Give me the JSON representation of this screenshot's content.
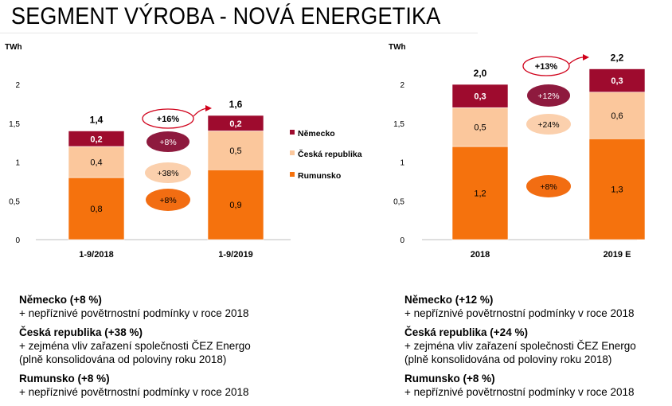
{
  "page": {
    "title": "SEGMENT VÝROBA - NOVÁ ENERGETIKA"
  },
  "colors": {
    "germany": "#9e0b2e",
    "czech": "#fbc79c",
    "romania": "#f5720d",
    "germany_badge": "#8e1a3e",
    "czech_badge": "#fbd0ad",
    "romania_badge": "#f26d12",
    "growth_oval": "#d0021b"
  },
  "chart_data": [
    {
      "type": "bar",
      "stacked": true,
      "unit": "TWh",
      "categories": [
        "1-9/2018",
        "1-9/2019"
      ],
      "series": [
        {
          "name": "Rumunsko",
          "values": [
            0.8,
            0.9
          ],
          "labels": [
            "0,8",
            "0,9"
          ]
        },
        {
          "name": "Česká republika",
          "values": [
            0.4,
            0.5
          ],
          "labels": [
            "0,4",
            "0,5"
          ]
        },
        {
          "name": "Německo",
          "values": [
            0.2,
            0.2
          ],
          "labels": [
            "0,2",
            "0,2"
          ]
        }
      ],
      "totals": [
        "1,4",
        "1,6"
      ],
      "ylim": [
        0,
        2
      ],
      "yticks": [
        "0",
        "0,5",
        "1",
        "1,5",
        "2"
      ],
      "legend": [
        "Německo",
        "Česká republika",
        "Rumunsko"
      ],
      "legend_position": "right",
      "growth_total": "+16%",
      "growth_badges": {
        "germany": "+8%",
        "czech": "+38%",
        "romania": "+8%"
      }
    },
    {
      "type": "bar",
      "stacked": true,
      "unit": "TWh",
      "categories": [
        "2018",
        "2019 E"
      ],
      "series": [
        {
          "name": "Rumunsko",
          "values": [
            1.2,
            1.3
          ],
          "labels": [
            "1,2",
            "1,3"
          ]
        },
        {
          "name": "Česká republika",
          "values": [
            0.5,
            0.6
          ],
          "labels": [
            "0,5",
            "0,6"
          ]
        },
        {
          "name": "Německo",
          "values": [
            0.3,
            0.3
          ],
          "labels": [
            "0,3",
            "0,3"
          ]
        }
      ],
      "totals": [
        "2,0",
        "2,2"
      ],
      "ylim": [
        0,
        2
      ],
      "yticks": [
        "0",
        "0,5",
        "1",
        "1,5",
        "2"
      ],
      "growth_total": "+13%",
      "growth_badges": {
        "germany": "+12%",
        "czech": "+24%",
        "romania": "+8%"
      }
    }
  ],
  "notes_left": [
    {
      "heading": "Německo (+8 %)",
      "lines": [
        "+ nepříznivé povětrnostní podmínky v roce 2018"
      ]
    },
    {
      "heading": "Česká republika (+38 %)",
      "lines": [
        "+ zejména vliv zařazení společnosti ČEZ Energo",
        "(plně konsolidována od poloviny roku 2018)"
      ]
    },
    {
      "heading": "Rumunsko (+8 %)",
      "lines": [
        "+ nepříznivé povětrnostní podmínky v roce 2018"
      ]
    }
  ],
  "notes_right": [
    {
      "heading": "Německo (+12 %)",
      "lines": [
        "+ nepříznivé povětrnostní podmínky v roce 2018"
      ]
    },
    {
      "heading": "Česká republika (+24 %)",
      "lines": [
        "+ zejména vliv zařazení společnosti ČEZ Energo",
        "(plně konsolidována od poloviny roku 2018)"
      ]
    },
    {
      "heading": "Rumunsko (+8 %)",
      "lines": [
        "+ nepříznivé povětrnostní podmínky v roce 2018"
      ]
    }
  ]
}
